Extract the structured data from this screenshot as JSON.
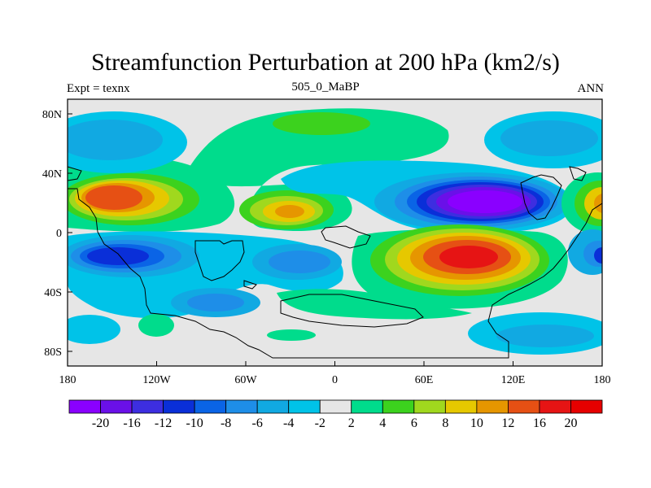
{
  "figure": {
    "title": "Streamfunction Perturbation at 200 hPa (km2/s)",
    "left_label": "Expt = texnx",
    "center_label": "505_0_MaBP",
    "right_label": "ANN"
  },
  "axes": {
    "x_ticks": [
      "180",
      "120W",
      "60W",
      "0",
      "60E",
      "120E",
      "180"
    ],
    "y_ticks": [
      "80N",
      "40N",
      "0",
      "40S",
      "80S"
    ]
  },
  "colorbar": {
    "labels": [
      "-20",
      "-16",
      "-12",
      "-10",
      "-8",
      "-6",
      "-4",
      "-2",
      "2",
      "4",
      "6",
      "8",
      "10",
      "12",
      "16",
      "20"
    ],
    "colors": [
      "#8a00ff",
      "#6a10e8",
      "#3d2ee0",
      "#0a2fd8",
      "#0a64e6",
      "#1e8ee8",
      "#11a9e2",
      "#00c3e8",
      "#e6e6e6",
      "#00dc8c",
      "#3cd21e",
      "#a0d81e",
      "#e6c800",
      "#e69600",
      "#e65014",
      "#e61414",
      "#e60000"
    ]
  },
  "map_fields": {
    "description_free": true,
    "blobs": [
      {
        "name": "pos-north-pacific",
        "levels": [
          0,
          1,
          2,
          3,
          4
        ],
        "colors": [
          "#00dc8c",
          "#3cd21e",
          "#a0d81e",
          "#e6c800",
          "#e65014"
        ]
      },
      {
        "name": "neg-asia",
        "levels": [
          0,
          1,
          2,
          3,
          4,
          5,
          6,
          7
        ],
        "colors": [
          "#00c3e8",
          "#11a9e2",
          "#1e8ee8",
          "#0a64e6",
          "#0a2fd8",
          "#3d2ee0",
          "#6a10e8",
          "#8a00ff"
        ]
      },
      {
        "name": "pos-indian-ocean",
        "levels": [
          0,
          1,
          2,
          3,
          4,
          5,
          6
        ],
        "colors": [
          "#00dc8c",
          "#3cd21e",
          "#a0d81e",
          "#e6c800",
          "#e69600",
          "#e65014",
          "#e61414"
        ]
      }
    ]
  }
}
